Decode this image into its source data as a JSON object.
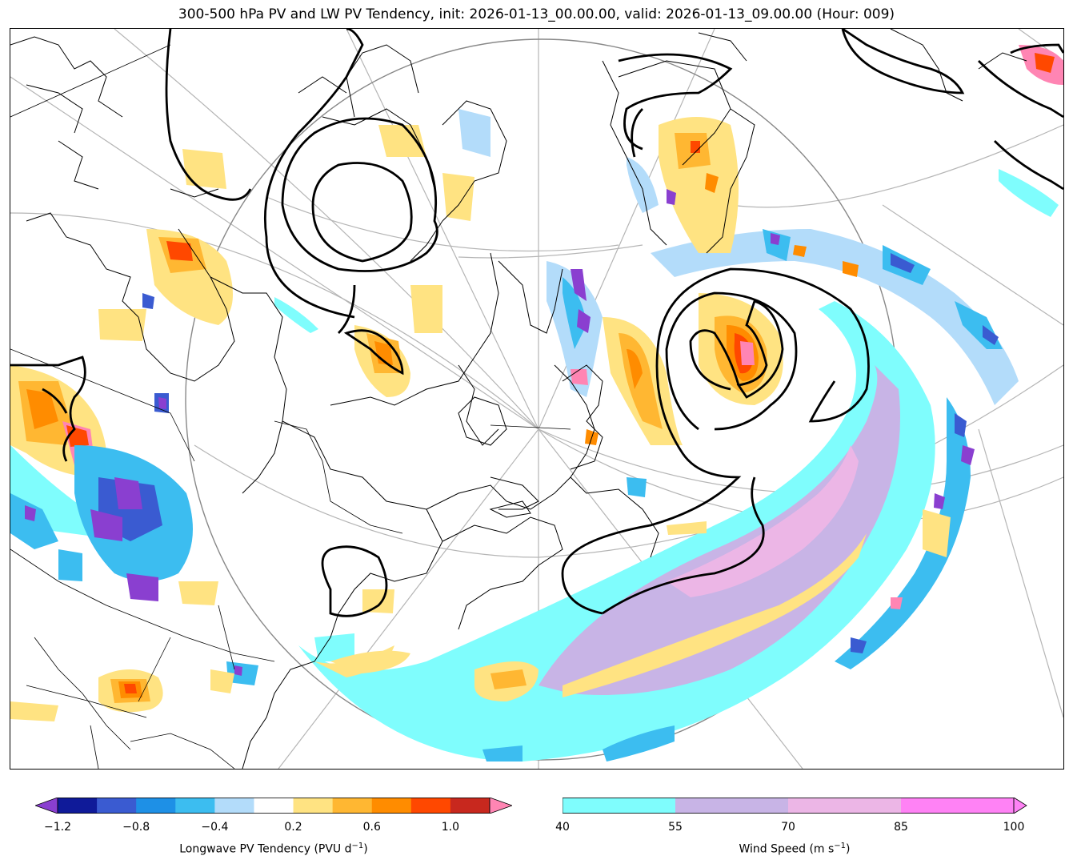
{
  "title": "300-500 hPa PV and LW PV Tendency, init: 2026-01-13_00.00.00, valid: 2026-01-13_09.00.00 (Hour: 009)",
  "colorbars": {
    "pv_tendency": {
      "label": "Longwave PV Tendency (PVU d",
      "label_sup": "−1",
      "label_tail": ")",
      "bounds": [
        -1.2,
        -1.0,
        -0.8,
        -0.6,
        -0.4,
        -0.2,
        0.2,
        0.4,
        0.6,
        0.8,
        1.0,
        1.2
      ],
      "colors": [
        "#0f1a99",
        "#3a5bd1",
        "#1e90e6",
        "#3cbdf0",
        "#b3dcfa",
        "#ffffff",
        "#ffe382",
        "#ffb732",
        "#ff8c00",
        "#ff4800",
        "#c8281e"
      ],
      "extend_low_color": "#8a3fd0",
      "extend_high_color": "#ff85b3",
      "tick_values": [
        -1.2,
        -0.8,
        -0.4,
        0.2,
        0.6,
        1.0
      ],
      "tick_labels": [
        "−1.2",
        "−0.8",
        "−0.4",
        "0.2",
        "0.6",
        "1.0"
      ]
    },
    "wind_speed": {
      "label": "Wind Speed (m s",
      "label_sup": "−1",
      "label_tail": ")",
      "bounds": [
        40,
        55,
        70,
        85,
        100
      ],
      "colors": [
        "#7ffdfd",
        "#c8b4e6",
        "#ecb6e6",
        "#ff82f5"
      ],
      "extend_high_color": "#ff82f5",
      "tick_values": [
        40,
        55,
        70,
        85,
        100
      ],
      "tick_labels": [
        "40",
        "55",
        "70",
        "85",
        "100"
      ]
    }
  }
}
